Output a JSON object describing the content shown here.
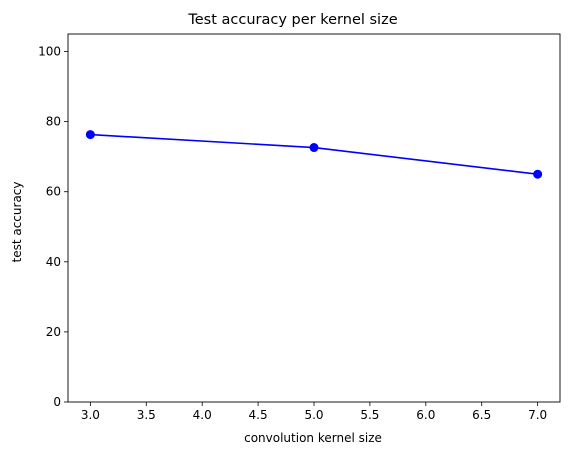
{
  "chart_data": {
    "type": "line",
    "title": "Test accuracy per kernel size",
    "xlabel": "convolution kernel size",
    "ylabel": "test accuracy",
    "xlim": [
      2.8,
      7.2
    ],
    "ylim": [
      0,
      105
    ],
    "xticks": [
      "3.0",
      "3.5",
      "4.0",
      "4.5",
      "5.0",
      "5.5",
      "6.0",
      "6.5",
      "7.0"
    ],
    "yticks": [
      "0",
      "20",
      "40",
      "60",
      "80",
      "100"
    ],
    "grid": false,
    "legend": "none",
    "series": [
      {
        "color": "#0000ff",
        "marker": "circle",
        "x": [
          3,
          5,
          7
        ],
        "y": [
          76.3,
          72.6,
          65.0
        ]
      }
    ]
  }
}
